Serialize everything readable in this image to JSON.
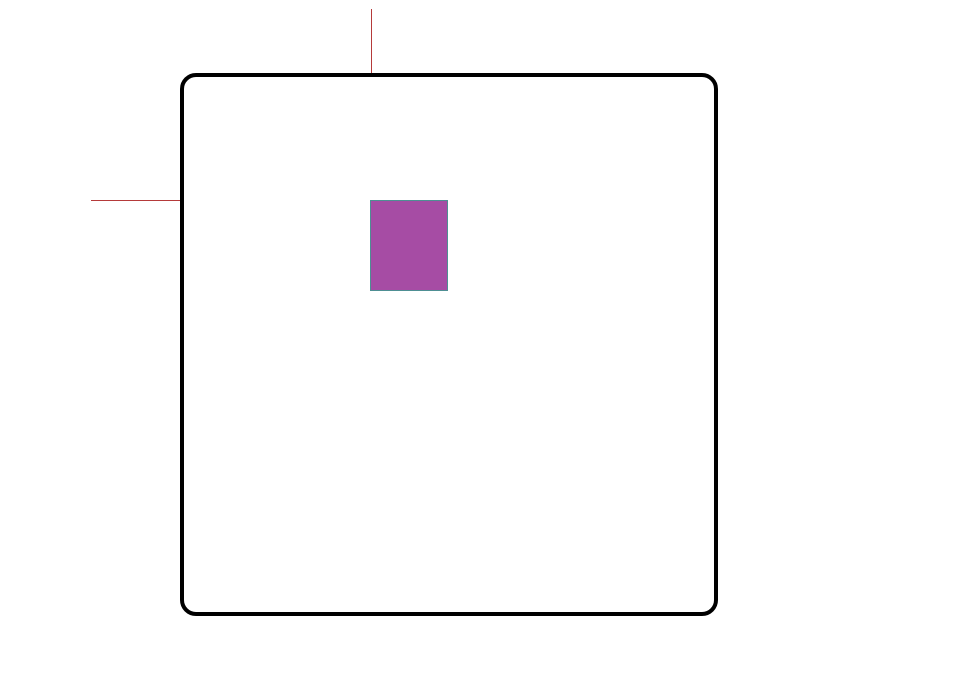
{
  "canvas": {
    "border_color": "#000000",
    "background": "#ffffff"
  },
  "guides": {
    "color": "#b53a3a"
  },
  "shape": {
    "fill_color": "#a64ca4",
    "stroke_color": "#4e8f93"
  }
}
